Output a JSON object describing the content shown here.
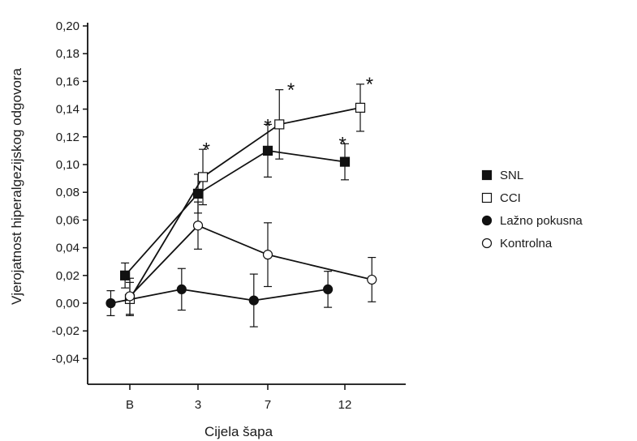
{
  "chart_data": {
    "type": "line",
    "xlabel": "Cijela šapa",
    "ylabel": "Vjerojatnost hiperalgezijskog odgovora",
    "categories": [
      "B",
      "3",
      "7",
      "12"
    ],
    "ylim": [
      -0.05,
      0.2
    ],
    "yticks": [
      -0.04,
      -0.02,
      0.0,
      0.02,
      0.04,
      0.06,
      0.08,
      0.1,
      0.12,
      0.14,
      0.16,
      0.18,
      0.2
    ],
    "ytick_labels": [
      "-0,04",
      "-0,02",
      "0,00",
      "0,02",
      "0,04",
      "0,06",
      "0,08",
      "0,10",
      "0,12",
      "0,14",
      "0,16",
      "0,18",
      "0,20"
    ],
    "grid": false,
    "legend_position": "right",
    "series": [
      {
        "name": "SNL",
        "marker": "filled-square",
        "x": [
          -0.07,
          1.0,
          2.0,
          3.0
        ],
        "values": [
          0.02,
          0.079,
          0.11,
          0.102
        ],
        "err": [
          0.009,
          0.014,
          0.019,
          0.013
        ]
      },
      {
        "name": "CCI",
        "marker": "open-square",
        "x": [
          0.0,
          1.07,
          2.15,
          3.2
        ],
        "values": [
          0.003,
          0.091,
          0.129,
          0.141
        ],
        "err": [
          0.012,
          0.02,
          0.025,
          0.017
        ]
      },
      {
        "name": "Lažno pokusna",
        "marker": "filled-circle",
        "x": [
          -0.28,
          0.76,
          1.8,
          2.78
        ],
        "values": [
          0.0,
          0.01,
          0.002,
          0.01
        ],
        "err": [
          0.009,
          0.015,
          0.019,
          0.013
        ]
      },
      {
        "name": "Kontrolna",
        "marker": "open-circle",
        "x": [
          0.0,
          1.0,
          2.0,
          3.35
        ],
        "values": [
          0.005,
          0.056,
          0.035,
          0.017
        ],
        "err": [
          0.013,
          0.017,
          0.023,
          0.016
        ]
      }
    ],
    "annotations": [
      {
        "text": "*",
        "x": 1.12,
        "y": 0.112
      },
      {
        "text": "*",
        "x": 2.0,
        "y": 0.129
      },
      {
        "text": "*",
        "x": 2.3,
        "y": 0.155
      },
      {
        "text": "*",
        "x": 2.97,
        "y": 0.116
      },
      {
        "text": "*",
        "x": 3.32,
        "y": 0.159
      }
    ]
  }
}
